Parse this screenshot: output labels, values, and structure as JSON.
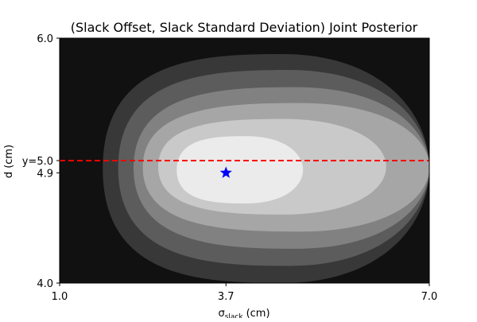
{
  "chart_data": {
    "type": "contour",
    "title": "(Slack Offset, Slack Standard Deviation) Joint Posterior",
    "xlabel_main": "σ",
    "xlabel_sub": "slack",
    "xlabel_unit": "(cm)",
    "ylabel": "d (cm)",
    "xlim": [
      1.0,
      7.0
    ],
    "ylim": [
      4.0,
      6.0
    ],
    "xticks": [
      {
        "value": 1.0,
        "label": "1.0"
      },
      {
        "value": 3.7,
        "label": "3.7"
      },
      {
        "value": 7.0,
        "label": "7.0"
      }
    ],
    "yticks": [
      {
        "value": 4.0,
        "label": "4.0"
      },
      {
        "value": 4.9,
        "label": "4.9"
      },
      {
        "value": 5.0,
        "label": "y=5.0"
      },
      {
        "value": 6.0,
        "label": "6.0"
      }
    ],
    "reference_line": {
      "y": 5.0,
      "color": "#ff0000",
      "style": "dashed"
    },
    "marker": {
      "x": 3.7,
      "y": 4.9,
      "symbol": "star",
      "color": "#0000ff"
    },
    "contour_levels": [
      {
        "level": 1,
        "color": "#111111",
        "x_min": 1.0,
        "x_max": 7.0,
        "y_min": 4.0,
        "y_max": 6.0
      },
      {
        "level": 2,
        "color": "#383838",
        "x_min": 1.7,
        "x_max": 7.0,
        "y_min": 4.0,
        "y_max": 5.87
      },
      {
        "level": 3,
        "color": "#5c5c5c",
        "x_min": 1.95,
        "x_max": 7.0,
        "y_min": 4.14,
        "y_max": 5.74
      },
      {
        "level": 4,
        "color": "#818181",
        "x_min": 2.2,
        "x_max": 7.0,
        "y_min": 4.28,
        "y_max": 5.6
      },
      {
        "level": 5,
        "color": "#a6a6a6",
        "x_min": 2.35,
        "x_max": 7.0,
        "y_min": 4.42,
        "y_max": 5.47
      },
      {
        "level": 6,
        "color": "#c9c9c9",
        "x_min": 2.6,
        "x_max": 6.3,
        "y_min": 4.56,
        "y_max": 5.34
      },
      {
        "level": 7,
        "color": "#ebebeb",
        "x_min": 2.9,
        "x_max": 4.95,
        "y_min": 4.65,
        "y_max": 5.2
      }
    ]
  }
}
